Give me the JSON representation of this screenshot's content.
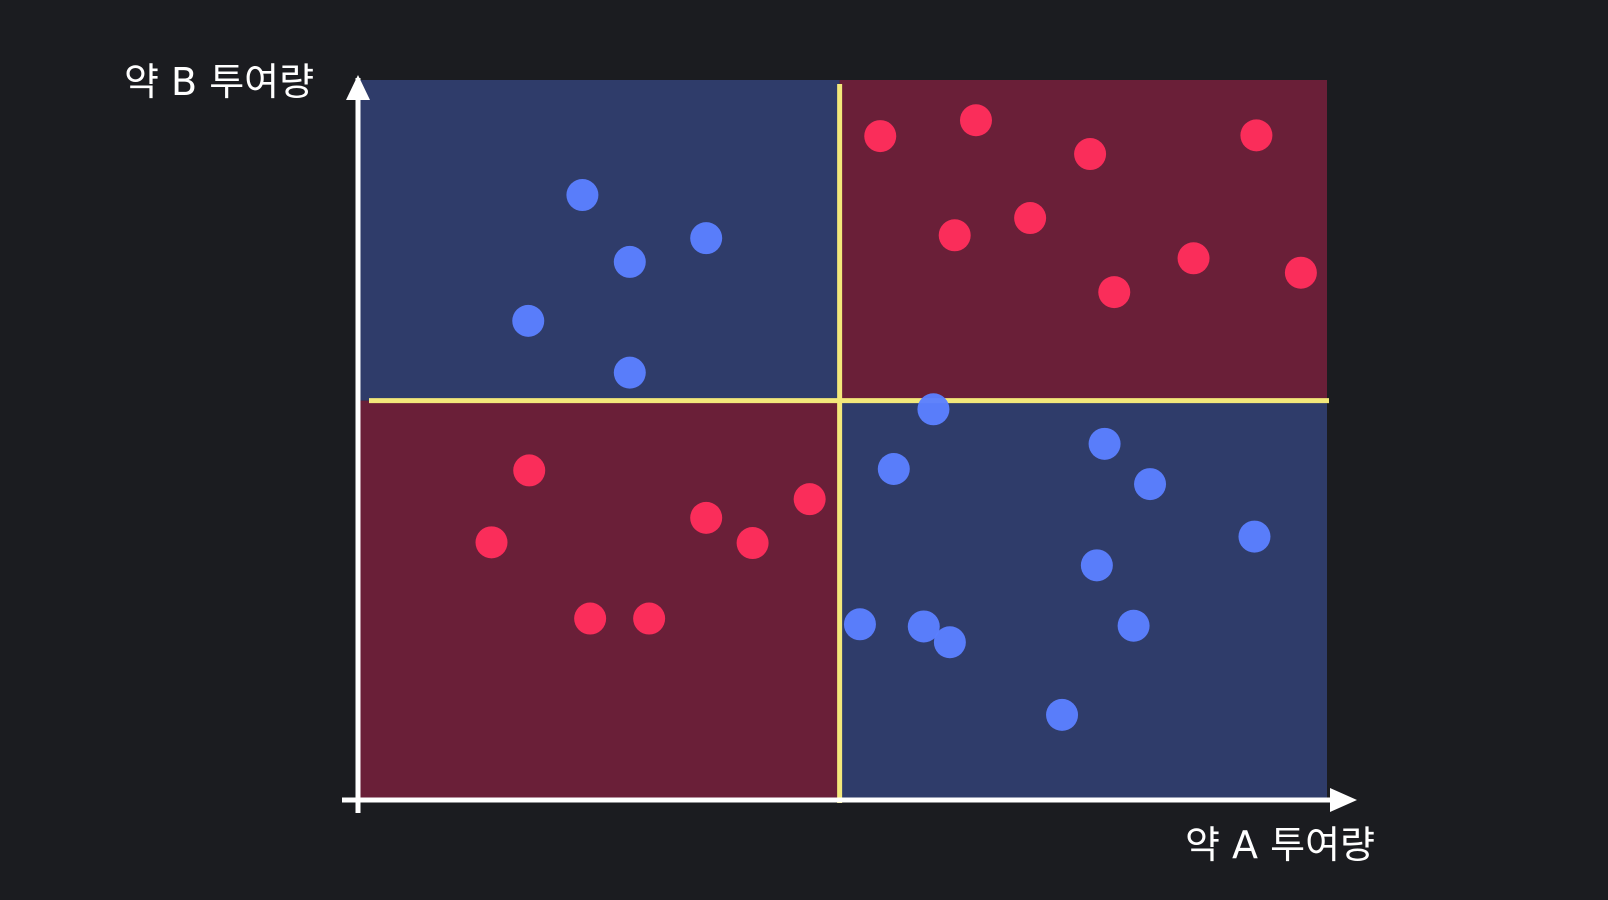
{
  "chart_data": {
    "type": "scatter",
    "xlabel": "약 A 투여량",
    "ylabel": "약 B 투여량",
    "xlim": [
      0,
      100
    ],
    "ylim": [
      0,
      100
    ],
    "grid": false,
    "threshold": {
      "x": 49.6,
      "y": 55.4
    },
    "regions": [
      {
        "name": "top-left",
        "x": [
          0,
          49.6
        ],
        "y": [
          55.4,
          100
        ],
        "color": "#2f3c6a"
      },
      {
        "name": "top-right",
        "x": [
          49.6,
          100
        ],
        "y": [
          55.4,
          100
        ],
        "color": "#6a1f38"
      },
      {
        "name": "bottom-left",
        "x": [
          0,
          49.6
        ],
        "y": [
          0,
          55.4
        ],
        "color": "#6a1f38"
      },
      {
        "name": "bottom-right",
        "x": [
          49.6,
          100
        ],
        "y": [
          0,
          55.4
        ],
        "color": "#2f3c6a"
      }
    ],
    "series": [
      {
        "color": "#5b7fff",
        "points": [
          [
            23.0,
            84.0
          ],
          [
            27.9,
            74.7
          ],
          [
            35.8,
            78.0
          ],
          [
            17.4,
            66.5
          ],
          [
            27.9,
            59.3
          ],
          [
            59.3,
            54.2
          ],
          [
            55.2,
            45.9
          ],
          [
            77.0,
            49.4
          ],
          [
            81.7,
            43.8
          ],
          [
            58.3,
            24.0
          ],
          [
            76.2,
            32.5
          ],
          [
            92.5,
            36.5
          ],
          [
            80.0,
            24.1
          ],
          [
            51.7,
            24.3
          ],
          [
            61.0,
            21.8
          ],
          [
            72.6,
            11.7
          ]
        ]
      },
      {
        "color": "#ff2d5c",
        "points": [
          [
            53.8,
            92.2
          ],
          [
            63.7,
            94.4
          ],
          [
            75.5,
            89.7
          ],
          [
            92.7,
            92.3
          ],
          [
            61.5,
            78.4
          ],
          [
            69.3,
            80.8
          ],
          [
            86.2,
            75.2
          ],
          [
            78.0,
            70.5
          ],
          [
            97.3,
            73.2
          ],
          [
            17.5,
            45.7
          ],
          [
            13.6,
            35.7
          ],
          [
            35.8,
            39.1
          ],
          [
            40.6,
            35.6
          ],
          [
            46.5,
            41.7
          ],
          [
            23.8,
            25.1
          ],
          [
            29.9,
            25.1
          ]
        ]
      }
    ]
  }
}
